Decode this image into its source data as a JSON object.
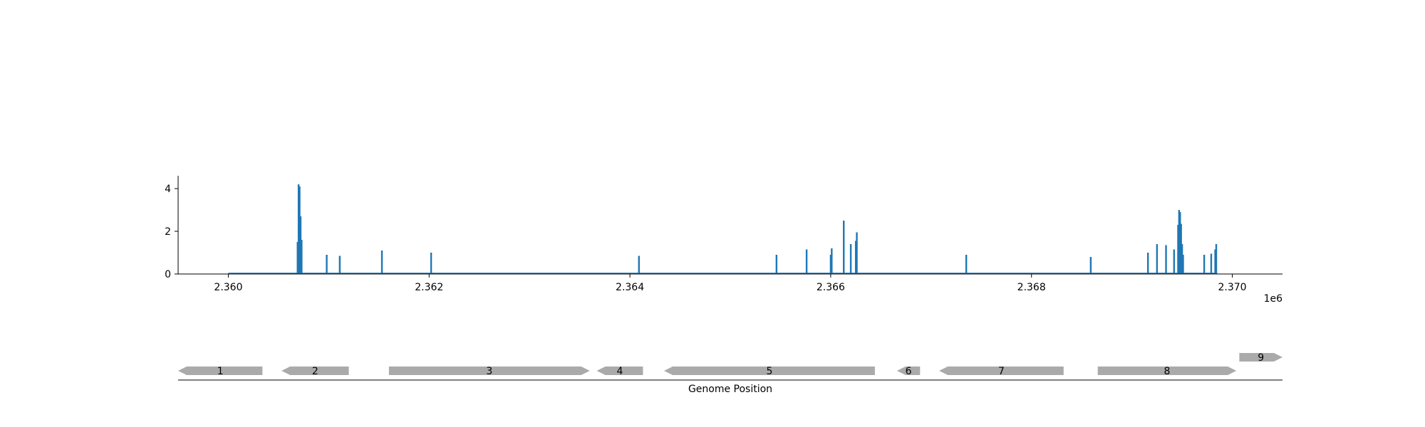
{
  "chart_data": {
    "type": "bar",
    "title": "",
    "xlabel": "Genome Position",
    "ylabel": "",
    "x_offset_label": "1e6",
    "xlim": [
      2359500,
      2370500
    ],
    "ylim": [
      0,
      4.6
    ],
    "x_ticks": [
      {
        "value": 2360000,
        "label": "2.360"
      },
      {
        "value": 2362000,
        "label": "2.362"
      },
      {
        "value": 2364000,
        "label": "2.364"
      },
      {
        "value": 2366000,
        "label": "2.366"
      },
      {
        "value": 2368000,
        "label": "2.368"
      },
      {
        "value": 2370000,
        "label": "2.370"
      }
    ],
    "y_ticks": [
      {
        "value": 0,
        "label": "0"
      },
      {
        "value": 2,
        "label": "2"
      },
      {
        "value": 4,
        "label": "4"
      }
    ],
    "grid": false,
    "bar_color": "#1f77b4",
    "baseline_range": [
      2360000,
      2369850
    ],
    "series": [
      {
        "x": [
          2360690,
          2360700,
          2360710,
          2360720,
          2360730,
          2360980,
          2361110,
          2361530,
          2362020,
          2364090,
          2365460,
          2365760,
          2366000,
          2366010,
          2366130,
          2366200,
          2366250,
          2366260,
          2367350,
          2368590,
          2369160,
          2369250,
          2369340,
          2369420,
          2369460,
          2369470,
          2369480,
          2369490,
          2369500,
          2369510,
          2369720,
          2369790,
          2369830,
          2369840
        ],
        "values": [
          1.5,
          4.2,
          4.1,
          2.7,
          1.6,
          0.9,
          0.85,
          1.1,
          1.0,
          0.85,
          0.9,
          1.15,
          0.9,
          1.2,
          2.5,
          1.4,
          1.55,
          1.95,
          0.9,
          0.8,
          1.0,
          1.4,
          1.35,
          1.15,
          2.3,
          3.0,
          2.9,
          2.35,
          1.4,
          0.9,
          0.9,
          0.95,
          1.15,
          1.4
        ]
      }
    ],
    "genes": {
      "color": "#aaaaaa",
      "items": [
        {
          "label": "1",
          "start": 2359500,
          "end": 2360340,
          "strand": "-",
          "row": 0
        },
        {
          "label": "2",
          "start": 2360530,
          "end": 2361200,
          "strand": "-",
          "row": 0
        },
        {
          "label": "3",
          "start": 2361600,
          "end": 2363600,
          "strand": "+",
          "row": 0
        },
        {
          "label": "4",
          "start": 2363670,
          "end": 2364130,
          "strand": "-",
          "row": 0
        },
        {
          "label": "5",
          "start": 2364340,
          "end": 2366440,
          "strand": "-",
          "row": 0
        },
        {
          "label": "6",
          "start": 2366660,
          "end": 2366890,
          "strand": "-",
          "row": 0
        },
        {
          "label": "7",
          "start": 2367080,
          "end": 2368320,
          "strand": "-",
          "row": 0
        },
        {
          "label": "8",
          "start": 2368660,
          "end": 2370040,
          "strand": "+",
          "row": 0
        },
        {
          "label": "9",
          "start": 2370070,
          "end": 2370500,
          "strand": "+",
          "row": 1
        }
      ]
    }
  }
}
